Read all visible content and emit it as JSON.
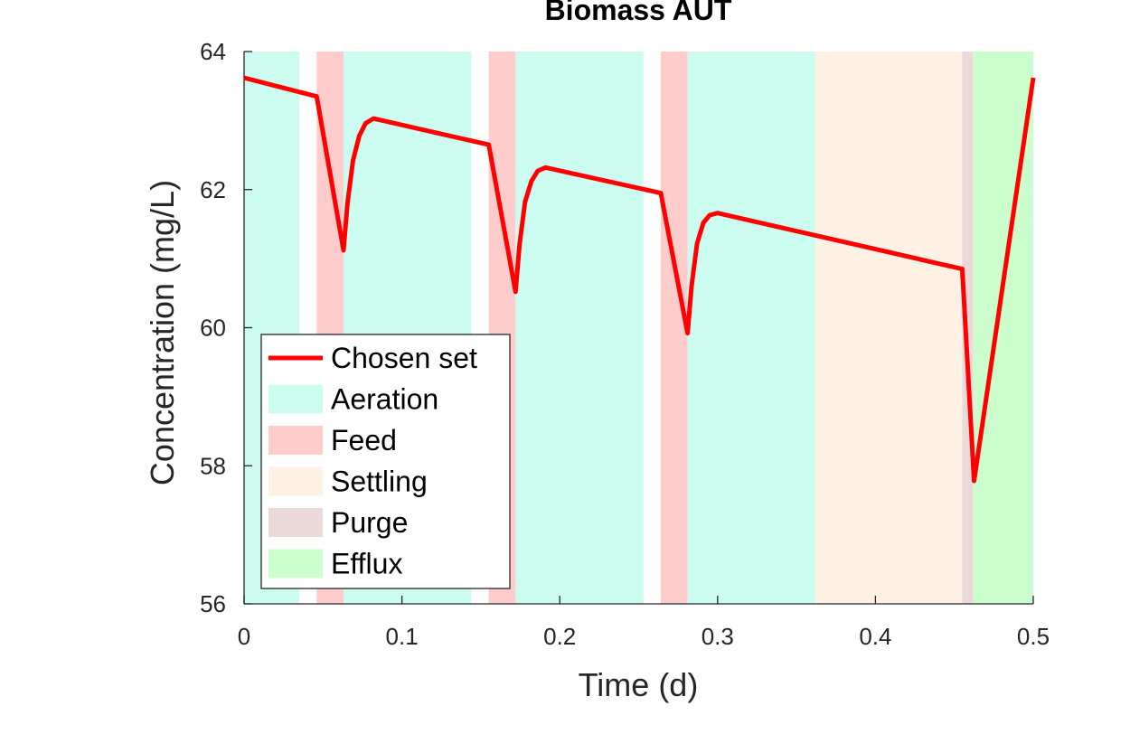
{
  "chart_data": {
    "type": "line",
    "title": "Biomass AUT",
    "xlabel": "Time (d)",
    "ylabel": "Concentration (mg/L)",
    "xlim": [
      0,
      0.5
    ],
    "ylim": [
      56,
      64
    ],
    "xticks": [
      0,
      0.1,
      0.2,
      0.3,
      0.4,
      0.5
    ],
    "xtick_labels": [
      "0",
      "0.1",
      "0.2",
      "0.3",
      "0.4",
      "0.5"
    ],
    "yticks": [
      56,
      58,
      60,
      62,
      64
    ],
    "ytick_labels": [
      "56",
      "58",
      "60",
      "62",
      "64"
    ],
    "grid": false,
    "legend_position": "bottom-left",
    "phase_colors": {
      "Aeration": "#ccfcf0",
      "Feed": "#ffcccc",
      "Settling": "#fff1e4",
      "Purge": "#ecdada",
      "Efflux": "#ccfdcc"
    },
    "phases": [
      {
        "name": "Aeration",
        "start": 0.0,
        "end": 0.035
      },
      {
        "name": "Feed",
        "start": 0.046,
        "end": 0.063
      },
      {
        "name": "Aeration",
        "start": 0.063,
        "end": 0.144
      },
      {
        "name": "Feed",
        "start": 0.155,
        "end": 0.172
      },
      {
        "name": "Aeration",
        "start": 0.172,
        "end": 0.253
      },
      {
        "name": "Feed",
        "start": 0.264,
        "end": 0.281
      },
      {
        "name": "Aeration",
        "start": 0.281,
        "end": 0.362
      },
      {
        "name": "Settling",
        "start": 0.362,
        "end": 0.455
      },
      {
        "name": "Purge",
        "start": 0.455,
        "end": 0.462
      },
      {
        "name": "Efflux",
        "start": 0.462,
        "end": 0.5
      }
    ],
    "series": [
      {
        "name": "Chosen set",
        "color": "#ff0000",
        "x": [
          0,
          0.046,
          0.063,
          0.0655,
          0.069,
          0.073,
          0.077,
          0.082,
          0.155,
          0.172,
          0.1745,
          0.178,
          0.182,
          0.186,
          0.191,
          0.264,
          0.281,
          0.2835,
          0.287,
          0.291,
          0.295,
          0.3,
          0.455,
          0.4625,
          0.5
        ],
        "y": [
          63.62,
          63.35,
          61.12,
          61.8,
          62.42,
          62.78,
          62.96,
          63.03,
          62.65,
          60.52,
          61.2,
          61.82,
          62.12,
          62.27,
          62.32,
          61.95,
          59.92,
          60.6,
          61.22,
          61.52,
          61.63,
          61.66,
          60.85,
          57.78,
          63.62
        ]
      }
    ],
    "legend": [
      "Chosen set",
      "Aeration",
      "Feed",
      "Settling",
      "Purge",
      "Efflux"
    ]
  }
}
